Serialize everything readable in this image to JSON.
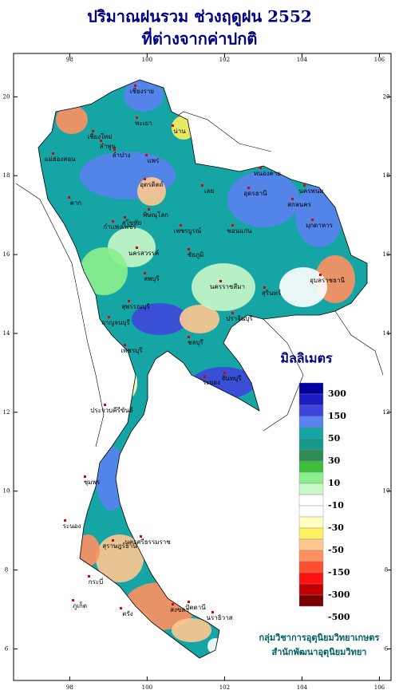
{
  "header": {
    "title": "ปริมาณฝนรวม ช่วงฤดูฝน 2552",
    "subtitle": "ที่ต่างจากค่าปกติ"
  },
  "map": {
    "xlim": [
      96.55,
      106.3
    ],
    "ylim": [
      5.2,
      21.1
    ],
    "xticks": [
      98,
      100,
      102,
      104,
      106
    ],
    "yticks": [
      6,
      8,
      10,
      12,
      14,
      16,
      18,
      20
    ],
    "provinces": [
      "เชียงราย",
      "พะเยา",
      "น่าน",
      "เชียงใหม่",
      "ลำพูน",
      "ลำปาง",
      "แพร่",
      "แม่ฮ่องสอน",
      "ตาก",
      "อุตรดิตถ์",
      "พิษณุโลก",
      "สุโขทัย",
      "กำแพงเพชร",
      "เพชรบูรณ์",
      "นครสวรรค์",
      "หนองคาย",
      "อุดรธานี",
      "นครพนม",
      "เลย",
      "สกลนคร",
      "มุกดาหาร",
      "ขอนแก่น",
      "ชัยภูมิ",
      "นครราชสีมา",
      "อุบลราชธานี",
      "สุรินทร์",
      "ลพบุรี",
      "สุพรรณบุรี",
      "กาญจนบุรี",
      "ปราจีนบุรี",
      "ชลบุรี",
      "ระยอง",
      "จันทบุรี",
      "เพชรบุรี",
      "ประจวบคีรีขันธ์",
      "ชุมพร",
      "ระนอง",
      "สุราษฎร์ธานี",
      "กระบี่",
      "ภูเก็ต",
      "นครศรีธรรมราช",
      "ตรัง",
      "สงขลา",
      "ปัตตานี",
      "นราธิวาส"
    ]
  },
  "legend": {
    "title": "มิลลิเมตร",
    "colors": [
      "#00009a",
      "#1c1cc4",
      "#3c46dc",
      "#5a82f0",
      "#16a5a5",
      "#14998a",
      "#2e8b57",
      "#3cc03c",
      "#8cef8c",
      "#c8f8c8",
      "#ffffff",
      "#ffffff",
      "#ffffc0",
      "#fff060",
      "#ffc890",
      "#ff9060",
      "#ff5030",
      "#ff1010",
      "#c00000",
      "#7a0000"
    ],
    "labels": [
      "300",
      "150",
      "50",
      "30",
      "10",
      "-10",
      "-30",
      "-50",
      "-150",
      "-300",
      "-500"
    ]
  },
  "credits": [
    "กลุ่มวิชาการอุตุนิยมวิทยาเกษตร",
    "สำนักพัฒนาอุตุนิยมวิทยา"
  ]
}
